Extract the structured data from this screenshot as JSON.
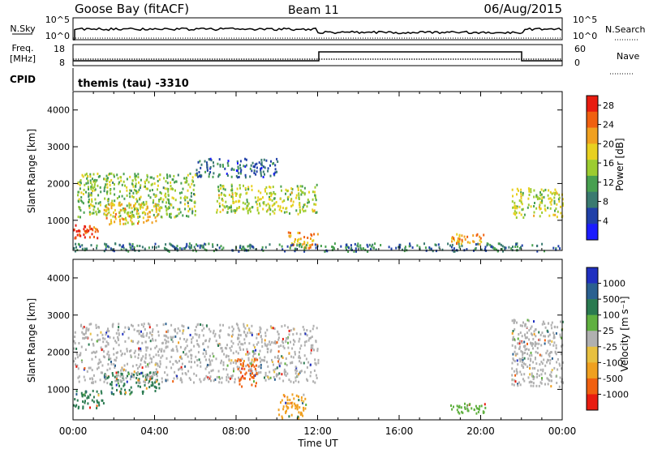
{
  "header": {
    "station": "Goose Bay (fitACF)",
    "beam": "Beam 11",
    "date": "06/Aug/2015"
  },
  "params_panel": {
    "left_top_label": "N.Sky",
    "left_top_ticks": [
      "10^5",
      "10^0"
    ],
    "right_top_ticks": [
      "10^5",
      "10^0"
    ],
    "right_top_label": "N.Search",
    "freq_label_1": "Freq.",
    "freq_label_2": "[MHz]",
    "freq_ticks": [
      "18",
      "8"
    ],
    "nave_label": "Nave",
    "nave_ticks": [
      "60",
      "0"
    ],
    "cpid_label": "CPID",
    "cpid_value": "themis (tau) -3310"
  },
  "chart_data": [
    {
      "type": "heatmap",
      "name": "power",
      "ylabel": "Slant Range [km]",
      "xlabel": "Time UT",
      "xlim": [
        "00:00",
        "24:00"
      ],
      "ylim": [
        180,
        4500
      ],
      "yticks": [
        "1000",
        "2000",
        "3000",
        "4000"
      ],
      "xticks": [
        "00:00",
        "04:00",
        "08:00",
        "12:00",
        "16:00",
        "20:00",
        "00:00"
      ],
      "colorbar": {
        "label": "Power [dB]",
        "ticks": [
          "4",
          "8",
          "12",
          "16",
          "20",
          "24",
          "28"
        ],
        "range": [
          0,
          30
        ],
        "colors": [
          "#1c1cff",
          "#2040a8",
          "#3a7a70",
          "#48a050",
          "#9ccc30",
          "#e8d020",
          "#f0a020",
          "#f06010",
          "#e81c10"
        ]
      },
      "echo_regions": [
        {
          "t": [
            0.0,
            1.2
          ],
          "r": [
            520,
            900
          ],
          "value": 28
        },
        {
          "t": [
            0.2,
            6.0
          ],
          "r": [
            1100,
            2300
          ],
          "value": 14
        },
        {
          "t": [
            1.5,
            4.2
          ],
          "r": [
            900,
            1500
          ],
          "value": 20
        },
        {
          "t": [
            6.0,
            10.0
          ],
          "r": [
            2200,
            2700
          ],
          "value": 6
        },
        {
          "t": [
            7.0,
            12.0
          ],
          "r": [
            1200,
            2000
          ],
          "value": 16
        },
        {
          "t": [
            10.5,
            12.0
          ],
          "r": [
            250,
            700
          ],
          "value": 22
        },
        {
          "t": [
            18.5,
            20.2
          ],
          "r": [
            380,
            650
          ],
          "value": 22
        },
        {
          "t": [
            21.5,
            24.0
          ],
          "r": [
            1100,
            1900
          ],
          "value": 16
        },
        {
          "t": [
            0.0,
            24.0
          ],
          "r": [
            180,
            400
          ],
          "value": 8
        }
      ]
    },
    {
      "type": "heatmap",
      "name": "velocity",
      "ylabel": "Slant Range [km]",
      "xlabel": "Time UT",
      "xlim": [
        "00:00",
        "24:00"
      ],
      "ylim": [
        180,
        4500
      ],
      "yticks": [
        "1000",
        "2000",
        "3000",
        "4000"
      ],
      "xticks": [
        "00:00",
        "04:00",
        "08:00",
        "12:00",
        "16:00",
        "20:00",
        "00:00"
      ],
      "colorbar": {
        "label": "Velocity [m s⁻¹]",
        "ticks": [
          "1000",
          "500",
          "100",
          "25",
          "-25",
          "-100",
          "-500",
          "-1000"
        ],
        "colors": [
          "#2030c0",
          "#2a6090",
          "#2a7a50",
          "#60b040",
          "#b0b0b0",
          "#e8c040",
          "#f0a020",
          "#f06010",
          "#e81c10"
        ]
      },
      "echo_regions": [
        {
          "t": [
            0.0,
            1.5
          ],
          "r": [
            500,
            1000
          ],
          "value": "100 to 500"
        },
        {
          "t": [
            1.5,
            4.2
          ],
          "r": [
            900,
            1500
          ],
          "value": "100 to 500"
        },
        {
          "t": [
            0.0,
            12.0
          ],
          "r": [
            1200,
            2800
          ],
          "value": "-25 to 25"
        },
        {
          "t": [
            8.0,
            9.0
          ],
          "r": [
            1100,
            1900
          ],
          "value": "-100 to -500"
        },
        {
          "t": [
            10.0,
            11.5
          ],
          "r": [
            250,
            900
          ],
          "value": "-25 to -100"
        },
        {
          "t": [
            18.5,
            20.2
          ],
          "r": [
            380,
            650
          ],
          "value": "25 to 100"
        },
        {
          "t": [
            21.5,
            24.0
          ],
          "r": [
            1100,
            2900
          ],
          "value": "-25 to 25"
        }
      ]
    }
  ]
}
